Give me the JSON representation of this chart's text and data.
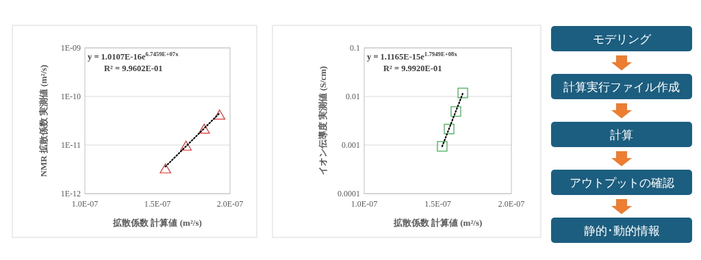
{
  "chart_data": [
    {
      "type": "scatter",
      "ylabel": "NMR 拡散係数 実測値 (m²/s)",
      "xlabel": "拡散係数 計算値 (m²/s)",
      "log": "y",
      "grid": "y",
      "marker": "triangle",
      "xlim": [
        1e-07,
        2e-07
      ],
      "xticks": [
        {
          "value": 1e-07,
          "label": "1.0E-07"
        },
        {
          "value": 1.5e-07,
          "label": "1.5E-07"
        },
        {
          "value": 2e-07,
          "label": "2.0E-07"
        }
      ],
      "ylim": [
        1e-12,
        1e-09
      ],
      "yticks": [
        {
          "value": 1e-12,
          "label": "1E-12"
        },
        {
          "value": 1e-11,
          "label": "1E-11"
        },
        {
          "value": 1e-10,
          "label": "1E-10"
        },
        {
          "value": 1e-09,
          "label": "1E-09"
        }
      ],
      "x": [
        1.555e-07,
        1.697e-07,
        1.822e-07,
        1.928e-07
      ],
      "series": [
        {
          "color": "#e03030",
          "values": [
            3.2e-12,
            9.4e-12,
            2.1e-11,
            4.1e-11
          ]
        },
        {
          "type": "line",
          "line_style": "dotted",
          "marker": "none",
          "color": "#000000",
          "x": [
            1.555e-07,
            1.93e-07
          ],
          "values": [
            3.6e-12,
            4.6e-11
          ]
        }
      ],
      "annotations": [
        "y = 1.0107E-16e$^{6.7459E+07x}$",
        "R² = 9.9602E-01"
      ]
    },
    {
      "type": "scatter",
      "ylabel": "イオン伝導度 実測値 (S/cm)",
      "xlabel": "拡散係数 計算値 (m²/s)",
      "log": "y",
      "grid": "y",
      "marker": "square",
      "xlim": [
        1e-07,
        2e-07
      ],
      "xticks": [
        {
          "value": 1e-07,
          "label": "1.0E-07"
        },
        {
          "value": 1.5e-07,
          "label": "1.5E-07"
        },
        {
          "value": 2e-07,
          "label": "2.0E-07"
        }
      ],
      "ylim": [
        0.0001,
        0.1
      ],
      "yticks": [
        0.0001,
        0.001,
        0.01,
        0.1
      ],
      "x": [
        1.53e-07,
        1.577e-07,
        1.623e-07,
        1.67e-07
      ],
      "series": [
        {
          "color": "#3aaa50",
          "values": [
            0.00094,
            0.00214,
            0.0049,
            0.0118
          ]
        },
        {
          "type": "line",
          "line_style": "dotted",
          "marker": "none",
          "color": "#000000",
          "x": [
            1.53e-07,
            1.67e-07
          ],
          "values": [
            0.00094,
            0.0116
          ]
        }
      ],
      "annotations": [
        "y = 1.1165E-15e$^{1.7949E+08x}$",
        "R² = 9.9920E-01"
      ]
    },
    {
      "type": "other",
      "annotations": [
        "モデリング",
        "計算実行ファイル作成",
        "計算",
        "アウトプットの確認",
        "静的･動的情報"
      ]
    }
  ]
}
